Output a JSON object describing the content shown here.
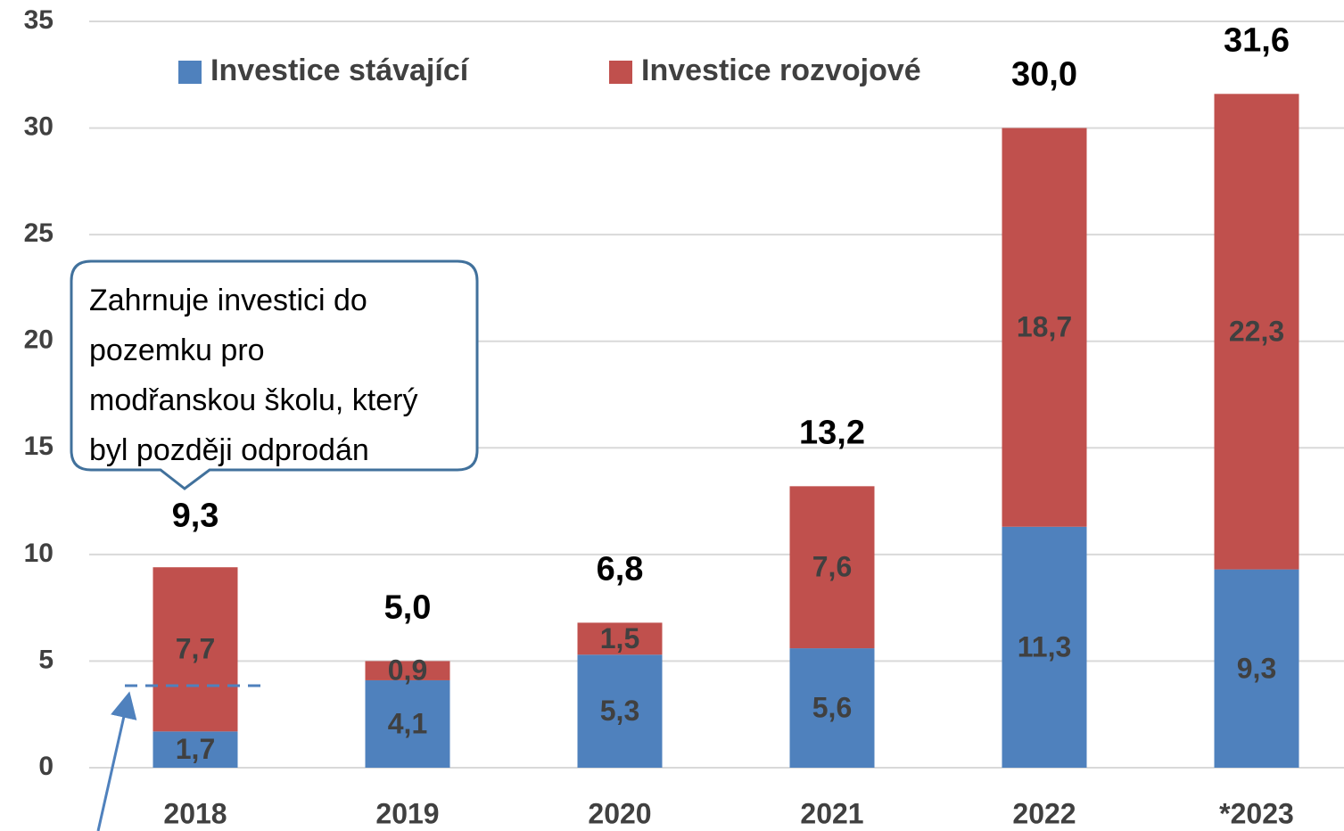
{
  "chart_data": {
    "type": "stacked_bar",
    "categories": [
      "2018",
      "2019",
      "2020",
      "2021",
      "2022",
      "*2023"
    ],
    "series": [
      {
        "name": "Investice stávající",
        "color": "#4f81bd",
        "values": [
          1.7,
          4.1,
          5.3,
          5.6,
          11.3,
          9.3
        ],
        "value_labels": [
          "1,7",
          "4,1",
          "5,3",
          "5,6",
          "11,3",
          "9,3"
        ]
      },
      {
        "name": "Investice rozvojové",
        "color": "#c0504d",
        "values": [
          7.7,
          0.9,
          1.5,
          7.6,
          18.7,
          22.3
        ],
        "value_labels": [
          "7,7",
          "0,9",
          "1,5",
          "7,6",
          "18,7",
          "22,3"
        ]
      }
    ],
    "totals": [
      9.3,
      5.0,
      6.8,
      13.2,
      30.0,
      31.6
    ],
    "total_labels": [
      "9,3",
      "5,0",
      "6,8",
      "13,2",
      "30,0",
      "31,6"
    ],
    "ylim": [
      0,
      35
    ],
    "yticks": [
      0,
      5,
      10,
      15,
      20,
      25,
      30,
      35
    ],
    "grid": true,
    "annotation": [
      "Zahrnuje investici do",
      "pozemku pro",
      "modřanskou školu, který",
      "byl později odprodán"
    ]
  }
}
